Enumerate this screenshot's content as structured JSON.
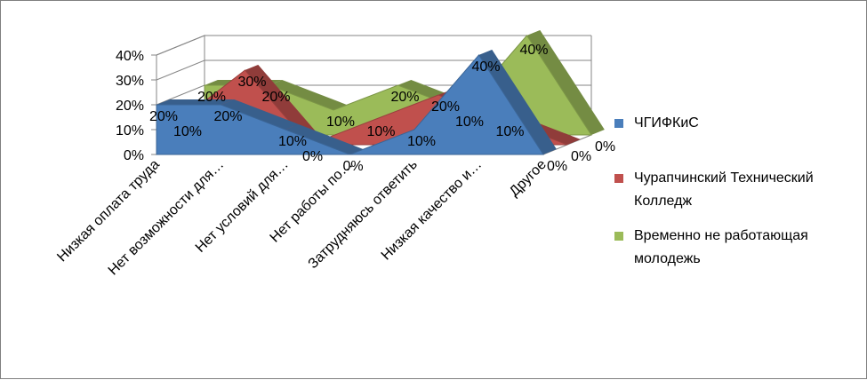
{
  "chart_data": {
    "type": "area",
    "categories": [
      "Низкая оплата труда",
      "Нет возможности для…",
      "Нет условий для…",
      "Нет работы по…",
      "Затрудняюсь ответить",
      "Низкая качество и…",
      "Другое"
    ],
    "ylim": [
      0,
      40
    ],
    "yticks": [
      "0%",
      "10%",
      "20%",
      "30%",
      "40%"
    ],
    "grid": true,
    "legend_position": "right",
    "series": [
      {
        "name": "ЧГИФКиС",
        "color": "#4a7ebb",
        "values": [
          20,
          20,
          10,
          0,
          10,
          40,
          0
        ],
        "labels": [
          "20%",
          "20%",
          "10%",
          "0%",
          "10%",
          "40%",
          "0%"
        ]
      },
      {
        "name": "Чурапчинский Технический Колледж",
        "color": "#c0504d",
        "values": [
          10,
          30,
          0,
          10,
          20,
          10,
          0
        ],
        "labels": [
          "10%",
          "30%",
          "0%",
          "10%",
          "20%",
          "10%",
          "0%"
        ]
      },
      {
        "name": "Временно не работающая молодежь",
        "color": "#9bbb59",
        "values": [
          20,
          20,
          10,
          20,
          10,
          40,
          0
        ],
        "labels": [
          "20%",
          "20%",
          "10%",
          "20%",
          "10%",
          "40%",
          "0%"
        ]
      }
    ]
  }
}
